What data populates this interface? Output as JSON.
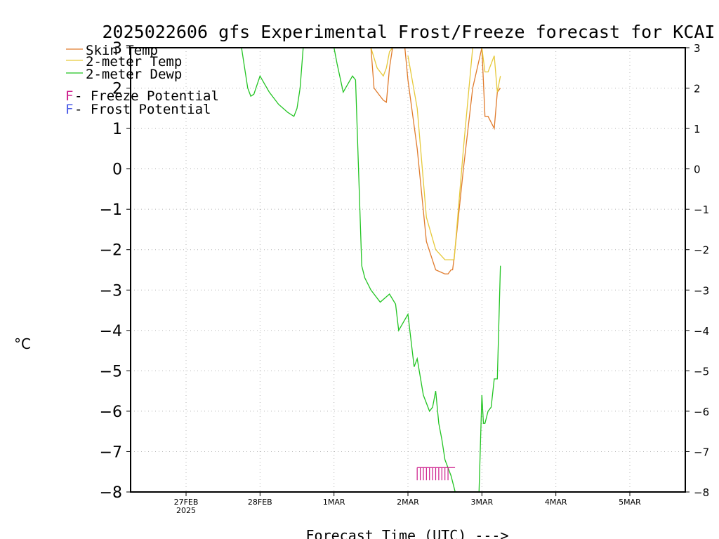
{
  "chart_data": {
    "type": "line",
    "title": "2025022606 gfs Experimental Frost/Freeze forecast for KCAI",
    "xlabel": "Forecast Time (UTC) --->",
    "ylabel": "°C",
    "ylim": [
      -8,
      3
    ],
    "xlim": [
      "2025-02-26T06:00",
      "2025-03-05T18:00"
    ],
    "yticks": [
      3,
      2,
      1,
      0,
      -1,
      -2,
      -3,
      -4,
      -5,
      -6,
      -7,
      -8
    ],
    "ytick_labels_left": [
      "3",
      "2",
      "1",
      "0",
      "−1",
      "−2",
      "−3",
      "−4",
      "−5",
      "−6",
      "−7",
      "−8"
    ],
    "ytick_labels_right": [
      "3",
      "2",
      "1",
      "0",
      "−1",
      "−2",
      "−3",
      "−4",
      "−5",
      "−6",
      "−7",
      "−8"
    ],
    "xticks": [
      {
        "x": "2025-02-27T00:00",
        "label": "27FEB",
        "sublabel": "2025"
      },
      {
        "x": "2025-02-28T00:00",
        "label": "28FEB",
        "sublabel": ""
      },
      {
        "x": "2025-03-01T00:00",
        "label": "1MAR",
        "sublabel": ""
      },
      {
        "x": "2025-03-02T00:00",
        "label": "2MAR",
        "sublabel": ""
      },
      {
        "x": "2025-03-03T00:00",
        "label": "3MAR",
        "sublabel": ""
      },
      {
        "x": "2025-03-04T00:00",
        "label": "4MAR",
        "sublabel": ""
      },
      {
        "x": "2025-03-05T00:00",
        "label": "5MAR",
        "sublabel": ""
      }
    ],
    "grid": true,
    "legend_position": "top-left",
    "legend": [
      {
        "label": "Skin Temp",
        "color": "#e07b2c",
        "kind": "line"
      },
      {
        "label": "2-meter Temp",
        "color": "#e6c93a",
        "kind": "line"
      },
      {
        "label": "2-meter Dewp",
        "color": "#22c422",
        "kind": "line"
      },
      {
        "letter": "F",
        "label": " - Freeze Potential",
        "color": "#cc1a8a",
        "kind": "letter"
      },
      {
        "letter": "F",
        "label": " - Frost Potential",
        "color": "#4a5ae6",
        "kind": "letter"
      }
    ],
    "series": [
      {
        "name": "Skin Temp",
        "color": "#e07b2c",
        "x": [
          "2025-03-01T12:00",
          "2025-03-01T13:00",
          "2025-03-01T15:00",
          "2025-03-01T16:00",
          "2025-03-01T17:00",
          "2025-03-01T18:00",
          "2025-03-01T19:00",
          "2025-03-01T23:00",
          "2025-03-02T00:00",
          "2025-03-02T03:00",
          "2025-03-02T06:00",
          "2025-03-02T09:00",
          "2025-03-02T12:00",
          "2025-03-02T13:00",
          "2025-03-02T14:00",
          "2025-03-02T14:30",
          "2025-03-02T15:00",
          "2025-03-02T18:00",
          "2025-03-02T21:00",
          "2025-03-03T00:00",
          "2025-03-03T00:00",
          "2025-03-03T01:00",
          "2025-03-03T02:00",
          "2025-03-03T04:00",
          "2025-03-03T05:00",
          "2025-03-03T06:00"
        ],
        "y": [
          3,
          2,
          1.8,
          1.7,
          1.65,
          2.5,
          3,
          3,
          2.2,
          0.5,
          -1.8,
          -2.5,
          -2.6,
          -2.6,
          -2.5,
          -2.5,
          -2.2,
          0,
          2,
          3,
          3,
          1.3,
          1.3,
          1.0,
          1.9,
          2.0
        ],
        "segments": [
          [
            0,
            6
          ],
          [
            7,
            19
          ],
          [
            20,
            25
          ]
        ]
      },
      {
        "name": "2-meter Temp",
        "color": "#e6c93a",
        "x": [
          "2025-03-01T12:00",
          "2025-03-01T14:00",
          "2025-03-01T16:00",
          "2025-03-01T17:00",
          "2025-03-01T18:00",
          "2025-03-01T19:00",
          "2025-03-02T00:00",
          "2025-03-02T03:00",
          "2025-03-02T06:00",
          "2025-03-02T09:00",
          "2025-03-02T12:00",
          "2025-03-02T15:00",
          "2025-03-02T18:00",
          "2025-03-02T21:00",
          "2025-03-03T00:00",
          "2025-03-03T00:00",
          "2025-03-03T01:00",
          "2025-03-03T02:00",
          "2025-03-03T04:00",
          "2025-03-03T05:00",
          "2025-03-03T06:00"
        ],
        "y": [
          3,
          2.5,
          2.3,
          2.5,
          2.9,
          3,
          2.8,
          1.5,
          -1.2,
          -2.0,
          -2.25,
          -2.25,
          0.5,
          3,
          3,
          3,
          2.4,
          2.4,
          2.8,
          1.9,
          2.3
        ],
        "segments": [
          [
            0,
            5
          ],
          [
            6,
            14
          ],
          [
            15,
            20
          ]
        ]
      },
      {
        "name": "2-meter Dewp",
        "color": "#22c422",
        "x": [
          "2025-02-27T18:00",
          "2025-02-27T19:00",
          "2025-02-27T20:00",
          "2025-02-27T21:00",
          "2025-02-27T22:00",
          "2025-02-28T00:00",
          "2025-02-28T03:00",
          "2025-02-28T06:00",
          "2025-02-28T09:00",
          "2025-02-28T10:00",
          "2025-02-28T11:00",
          "2025-02-28T12:00",
          "2025-02-28T13:00",
          "2025-02-28T14:00",
          "2025-03-01T00:00",
          "2025-03-01T01:00",
          "2025-03-01T03:00",
          "2025-03-01T06:00",
          "2025-03-01T07:00",
          "2025-03-01T09:00",
          "2025-03-01T10:00",
          "2025-03-01T12:00",
          "2025-03-01T15:00",
          "2025-03-01T18:00",
          "2025-03-01T20:00",
          "2025-03-01T21:00",
          "2025-03-02T00:00",
          "2025-03-02T02:00",
          "2025-03-02T03:00",
          "2025-03-02T05:00",
          "2025-03-02T07:00",
          "2025-03-02T08:00",
          "2025-03-02T09:00",
          "2025-03-02T10:00",
          "2025-03-02T11:00",
          "2025-03-02T12:00",
          "2025-03-02T14:00",
          "2025-03-02T15:00",
          "2025-03-02T16:00",
          "2025-03-02T18:00",
          "2025-03-02T20:00",
          "2025-03-02T23:00",
          "2025-03-03T00:00",
          "2025-03-03T00:30",
          "2025-03-03T01:00",
          "2025-03-03T02:00",
          "2025-03-03T03:00",
          "2025-03-03T04:00",
          "2025-03-03T05:00",
          "2025-03-03T06:00"
        ],
        "y": [
          3,
          2.5,
          2,
          1.8,
          1.85,
          2.3,
          1.9,
          1.6,
          1.4,
          1.35,
          1.3,
          1.5,
          2.0,
          3,
          3,
          2.6,
          1.9,
          2.3,
          2.2,
          -2.4,
          -2.7,
          -3.0,
          -3.3,
          -3.1,
          -3.35,
          -4.0,
          -3.6,
          -4.9,
          -4.7,
          -5.6,
          -6.0,
          -5.9,
          -5.5,
          -6.3,
          -6.7,
          -7.2,
          -7.6,
          -7.9,
          -8.2,
          -8.6,
          -9.0,
          -8.2,
          -5.6,
          -6.3,
          -6.3,
          -6.0,
          -5.9,
          -5.2,
          -5.2,
          -2.4
        ],
        "segments": [
          [
            0,
            13
          ],
          [
            14,
            40
          ],
          [
            41,
            49
          ]
        ]
      }
    ],
    "freeze_markers": {
      "color": "#cc1a8a",
      "y": -7.5,
      "x": [
        "2025-03-02T03:00",
        "2025-03-02T04:00",
        "2025-03-02T05:00",
        "2025-03-02T06:00",
        "2025-03-02T07:00",
        "2025-03-02T08:00",
        "2025-03-02T09:00",
        "2025-03-02T10:00",
        "2025-03-02T11:00",
        "2025-03-02T12:00",
        "2025-03-02T13:00"
      ]
    }
  }
}
